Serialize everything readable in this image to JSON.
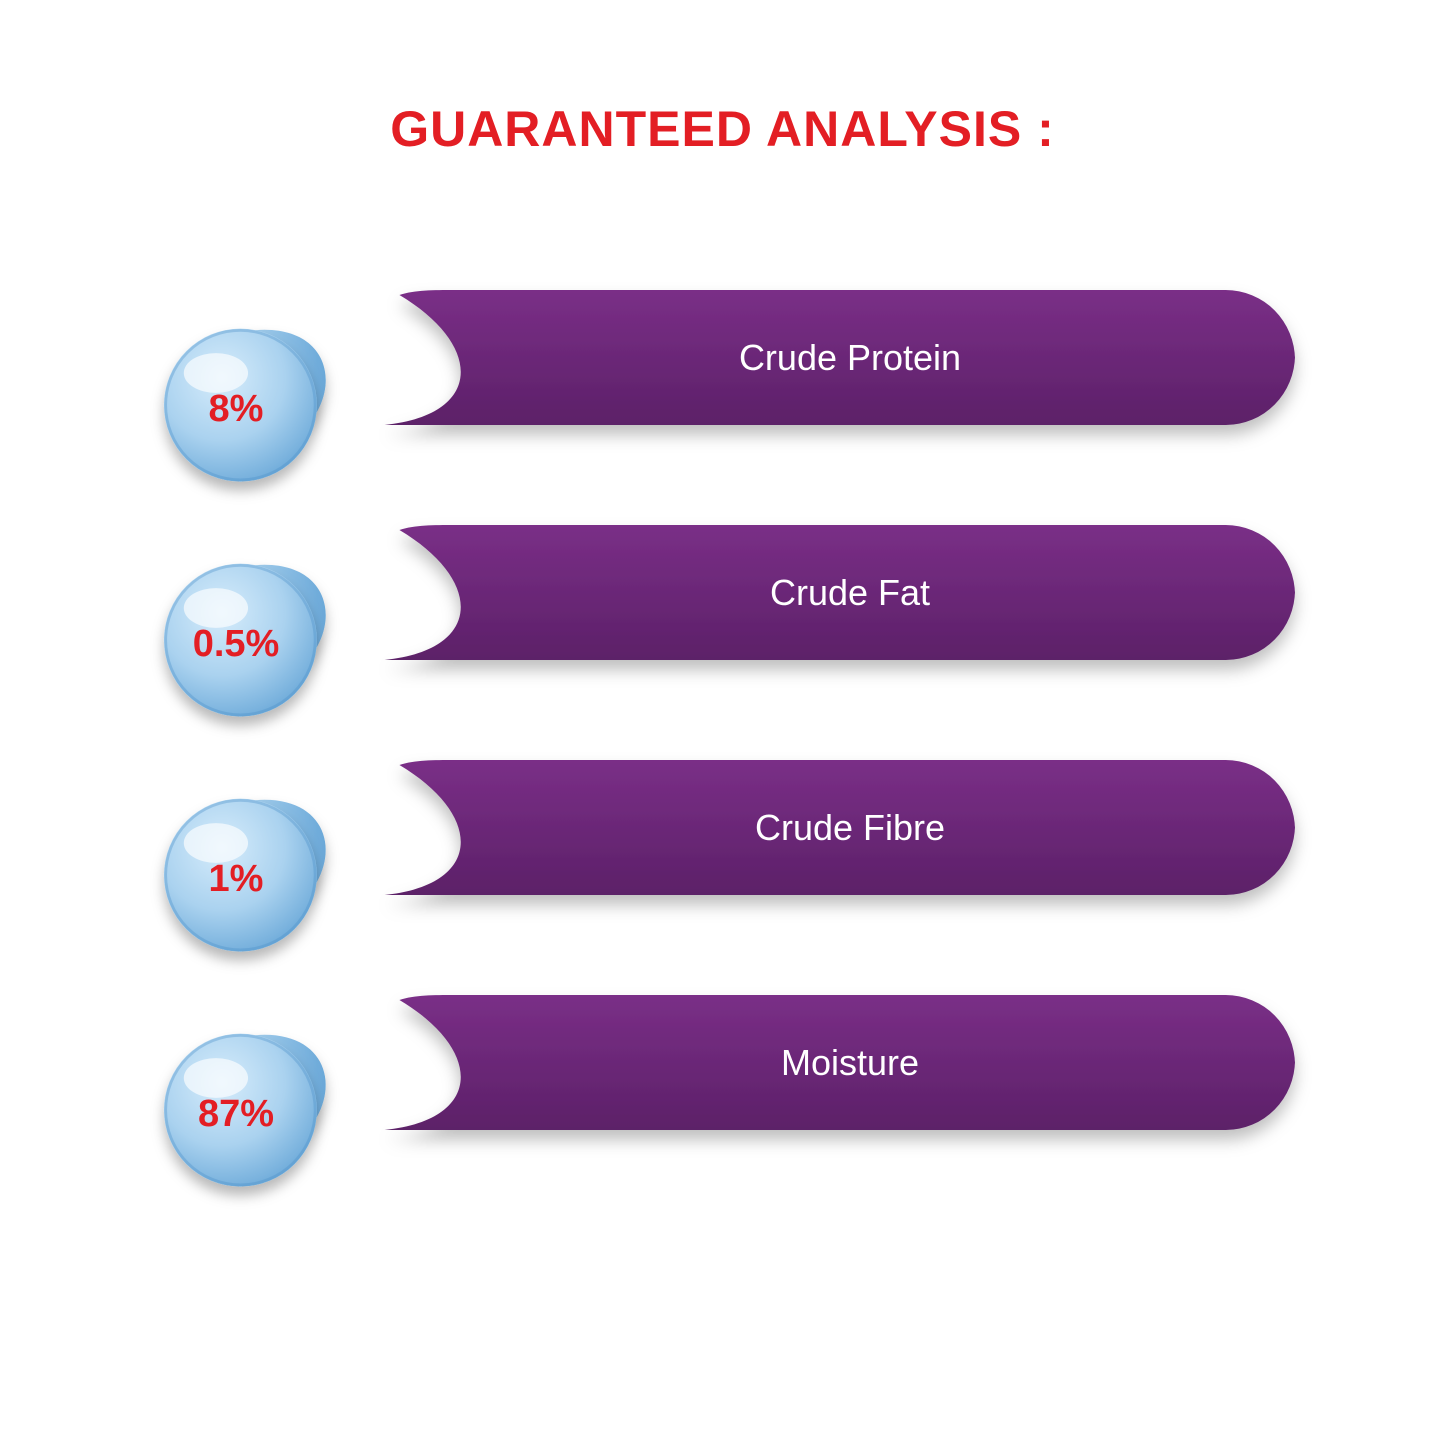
{
  "title": "GUARANTEED ANALYSIS :",
  "title_color": "#e31e24",
  "title_fontsize": 50,
  "background_color": "#ffffff",
  "bar": {
    "fill": "#7a2f87",
    "fill_dark": "#5c2068",
    "text_color": "#ffffff",
    "label_fontsize": 36,
    "height": 135,
    "radius": 70,
    "shadow_color": "rgba(0,0,0,0.25)"
  },
  "drop": {
    "light": "#d6ecfb",
    "mid": "#aad2ef",
    "dark": "#6aa8d8",
    "rim": "#4a8fc9",
    "pct_color": "#e31e24",
    "pct_fontsize": 38,
    "diameter": 170
  },
  "items": [
    {
      "pct": "8%",
      "label": "Crude Protein"
    },
    {
      "pct": "0.5%",
      "label": "Crude Fat"
    },
    {
      "pct": "1%",
      "label": "Crude Fibre"
    },
    {
      "pct": "87%",
      "label": "Moisture"
    }
  ]
}
